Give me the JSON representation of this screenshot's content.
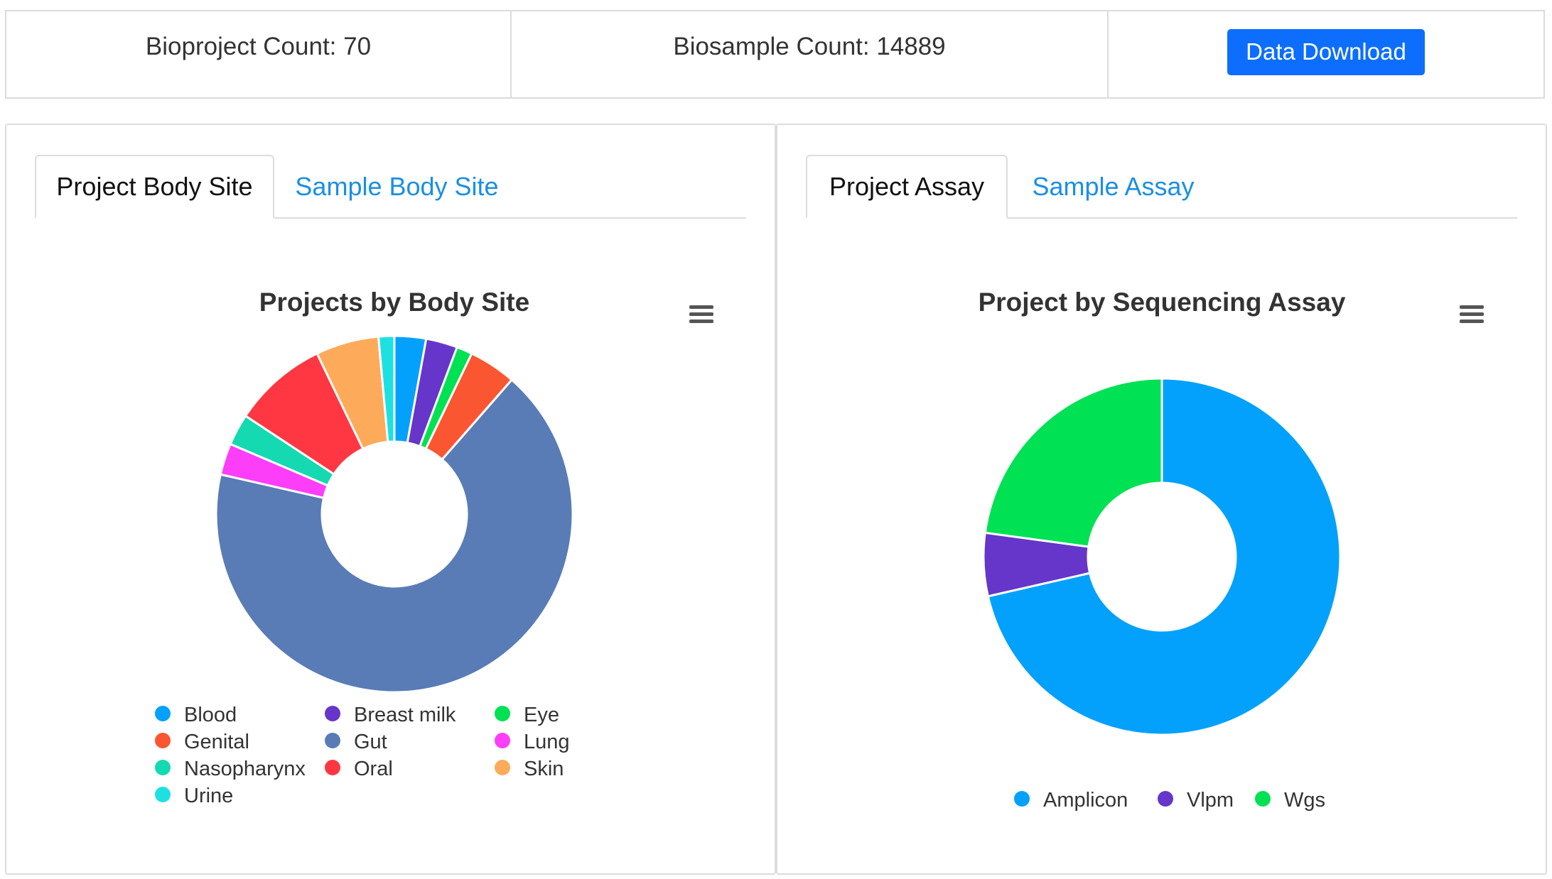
{
  "header": {
    "bioproject_count": "Bioproject Count: 70",
    "biosample_count": "Biosample Count: 14889",
    "download_label": "Data Download"
  },
  "left_panel": {
    "tabs": [
      {
        "label": "Project Body Site",
        "active": true
      },
      {
        "label": "Sample Body Site",
        "active": false
      }
    ]
  },
  "right_panel": {
    "tabs": [
      {
        "label": "Project Assay",
        "active": true
      },
      {
        "label": "Sample Assay",
        "active": false
      }
    ]
  },
  "menu_icon": "hamburger-menu-icon",
  "chart_data": [
    {
      "type": "pie",
      "title": "Projects by Body Site",
      "donut": true,
      "legend_position": "bottom",
      "slices": [
        {
          "name": "Blood",
          "value": 2,
          "color": "#03a1fb"
        },
        {
          "name": "Breast milk",
          "value": 2,
          "color": "#6536c9"
        },
        {
          "name": "Eye",
          "value": 1,
          "color": "#00e153"
        },
        {
          "name": "Genital",
          "value": 3,
          "color": "#fa5631"
        },
        {
          "name": "Gut",
          "value": 47,
          "color": "#597cb6"
        },
        {
          "name": "Lung",
          "value": 2,
          "color": "#fd3ef9"
        },
        {
          "name": "Nasopharynx",
          "value": 2,
          "color": "#14d9b1"
        },
        {
          "name": "Oral",
          "value": 6,
          "color": "#fe3742"
        },
        {
          "name": "Skin",
          "value": 4,
          "color": "#fdab5a"
        },
        {
          "name": "Urine",
          "value": 1,
          "color": "#1de1e1"
        }
      ]
    },
    {
      "type": "pie",
      "title": "Project by Sequencing Assay",
      "donut": true,
      "legend_position": "bottom",
      "slices": [
        {
          "name": "Amplicon",
          "value": 50,
          "color": "#03a1fb"
        },
        {
          "name": "Vlpm",
          "value": 4,
          "color": "#6536c9"
        },
        {
          "name": "Wgs",
          "value": 16,
          "color": "#00e153"
        }
      ]
    }
  ]
}
